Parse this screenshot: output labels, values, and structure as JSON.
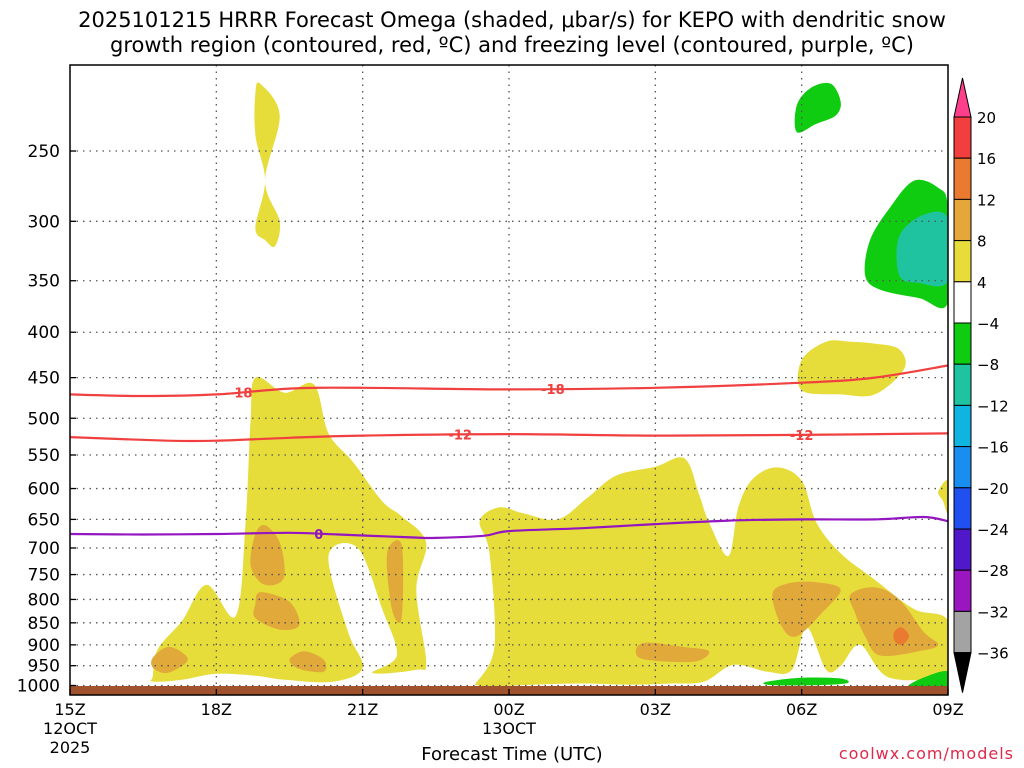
{
  "title_line1": "2025101215 HRRR Forecast Omega (shaded, μbar/s) for KEPO with dendritic snow",
  "title_line2": "growth region (contoured, red, ºC) and freezing level (contoured, purple, ºC)",
  "credit": "coolwx.com/models",
  "chart_data": {
    "type": "heatmap",
    "xlabel": "Forecast Time (UTC)",
    "x_ticks": [
      {
        "hour": 0,
        "label": "15Z",
        "sub1": "12OCT",
        "sub2": "2025"
      },
      {
        "hour": 3,
        "label": "18Z"
      },
      {
        "hour": 6,
        "label": "21Z"
      },
      {
        "hour": 9,
        "label": "00Z",
        "sub1": "13OCT"
      },
      {
        "hour": 12,
        "label": "03Z"
      },
      {
        "hour": 15,
        "label": "06Z"
      },
      {
        "hour": 18,
        "label": "09Z"
      }
    ],
    "xlim": [
      0,
      18
    ],
    "y_scale": "log-pressure",
    "ylim": [
      1025,
      200
    ],
    "y_ticks": [
      250,
      300,
      350,
      400,
      450,
      500,
      550,
      600,
      650,
      700,
      750,
      800,
      850,
      900,
      950,
      1000
    ],
    "grid": true,
    "colorbar": {
      "ticks": [
        "20",
        "16",
        "12",
        "8",
        "4",
        "−4",
        "−8",
        "−12",
        "−16",
        "−20",
        "−24",
        "−28",
        "−32",
        "−36"
      ],
      "colors": [
        "#ff3f8c",
        "#f23e3e",
        "#ea7a2f",
        "#e5a63a",
        "#e8dc3a",
        "#ffffff",
        "#10cc10",
        "#20c3a0",
        "#10b4e0",
        "#1a8ef0",
        "#2050f0",
        "#5018c8",
        "#9a16c0",
        "#a3a3a3",
        "#000000"
      ]
    },
    "omega_regions": [
      {
        "category": "4 to 8",
        "color": "#e6dc3a",
        "points": [
          [
            1.7,
            975
          ],
          [
            1.8,
            910
          ],
          [
            2.3,
            845
          ],
          [
            2.8,
            770
          ],
          [
            3.4,
            835
          ],
          [
            3.6,
            655
          ],
          [
            3.7,
            505
          ],
          [
            3.8,
            450
          ],
          [
            4.4,
            468
          ],
          [
            5.0,
            458
          ],
          [
            5.3,
            520
          ],
          [
            5.8,
            560
          ],
          [
            6.4,
            620
          ],
          [
            6.8,
            645
          ],
          [
            7.3,
            690
          ],
          [
            7.1,
            780
          ],
          [
            7.3,
            940
          ],
          [
            7.1,
            960
          ],
          [
            6.2,
            968
          ],
          [
            6.7,
            925
          ],
          [
            6.4,
            820
          ],
          [
            5.9,
            700
          ],
          [
            5.3,
            715
          ],
          [
            5.7,
            870
          ],
          [
            6.0,
            955
          ],
          [
            5.4,
            990
          ],
          [
            4.4,
            985
          ],
          [
            3.8,
            975
          ],
          [
            3.0,
            970
          ],
          [
            2.3,
            985
          ],
          [
            1.7,
            990
          ]
        ]
      },
      {
        "category": "4 to 8",
        "color": "#e6dc3a",
        "points": [
          [
            8.3,
            998
          ],
          [
            8.7,
            905
          ],
          [
            8.6,
            710
          ],
          [
            8.4,
            653
          ],
          [
            8.8,
            630
          ],
          [
            9.3,
            640
          ],
          [
            10.0,
            650
          ],
          [
            10.6,
            615
          ],
          [
            11.2,
            580
          ],
          [
            12.0,
            567
          ],
          [
            12.6,
            555
          ],
          [
            12.9,
            610
          ],
          [
            13.1,
            655
          ],
          [
            13.5,
            715
          ],
          [
            13.7,
            630
          ],
          [
            14.0,
            585
          ],
          [
            14.5,
            568
          ],
          [
            15.0,
            588
          ],
          [
            15.3,
            655
          ],
          [
            15.8,
            710
          ],
          [
            16.5,
            760
          ],
          [
            17.3,
            820
          ],
          [
            18.0,
            845
          ],
          [
            18.0,
            965
          ],
          [
            16.8,
            980
          ],
          [
            16.2,
            900
          ],
          [
            15.8,
            950
          ],
          [
            15.5,
            960
          ],
          [
            15.1,
            860
          ],
          [
            14.8,
            960
          ],
          [
            14.3,
            965
          ],
          [
            13.6,
            948
          ],
          [
            13.0,
            990
          ],
          [
            12.3,
            995
          ],
          [
            11.5,
            998
          ],
          [
            10.5,
            995
          ],
          [
            9.5,
            998
          ],
          [
            8.6,
            1003
          ],
          [
            8.3,
            998
          ]
        ]
      },
      {
        "category": "4 to 8",
        "color": "#e6dc3a",
        "points": [
          [
            3.8,
            215
          ],
          [
            3.9,
            210
          ],
          [
            4.3,
            228
          ],
          [
            4.0,
            270
          ],
          [
            4.3,
            300
          ],
          [
            4.2,
            320
          ],
          [
            4.0,
            315
          ],
          [
            3.8,
            305
          ],
          [
            4.0,
            270
          ],
          [
            3.8,
            240
          ]
        ]
      },
      {
        "category": "4 to 8",
        "color": "#e6dc3a",
        "points": [
          [
            15.0,
            430
          ],
          [
            15.5,
            410
          ],
          [
            16.0,
            410
          ],
          [
            16.5,
            412
          ],
          [
            17.0,
            418
          ],
          [
            17.1,
            440
          ],
          [
            16.5,
            470
          ],
          [
            15.8,
            470
          ],
          [
            15.0,
            465
          ]
        ]
      },
      {
        "category": "4 to 8",
        "color": "#e6dc3a",
        "points": [
          [
            17.8,
            605
          ],
          [
            18.0,
            588
          ],
          [
            18.0,
            640
          ],
          [
            17.9,
            620
          ]
        ]
      },
      {
        "category": "8 to 12",
        "color": "#e0a93a",
        "points": [
          [
            3.7,
            730
          ],
          [
            3.8,
            675
          ],
          [
            4.0,
            660
          ],
          [
            4.3,
            690
          ],
          [
            4.4,
            750
          ],
          [
            4.2,
            770
          ],
          [
            3.9,
            765
          ]
        ]
      },
      {
        "category": "8 to 12",
        "color": "#e0a93a",
        "points": [
          [
            3.8,
            810
          ],
          [
            3.9,
            785
          ],
          [
            4.5,
            805
          ],
          [
            4.7,
            855
          ],
          [
            4.3,
            865
          ],
          [
            3.8,
            840
          ]
        ]
      },
      {
        "category": "8 to 12",
        "color": "#e0a93a",
        "points": [
          [
            1.7,
            930
          ],
          [
            2.0,
            905
          ],
          [
            2.3,
            918
          ],
          [
            2.4,
            940
          ],
          [
            2.0,
            968
          ],
          [
            1.7,
            955
          ]
        ]
      },
      {
        "category": "8 to 12",
        "color": "#e0a93a",
        "points": [
          [
            4.5,
            935
          ],
          [
            4.8,
            915
          ],
          [
            5.2,
            935
          ],
          [
            5.2,
            965
          ],
          [
            4.7,
            958
          ]
        ]
      },
      {
        "category": "8 to 12",
        "color": "#e0a93a",
        "points": [
          [
            6.5,
            710
          ],
          [
            6.8,
            695
          ],
          [
            6.8,
            840
          ],
          [
            6.6,
            820
          ]
        ]
      },
      {
        "category": "8 to 12",
        "color": "#e0a93a",
        "points": [
          [
            11.6,
            915
          ],
          [
            11.8,
            895
          ],
          [
            12.6,
            905
          ],
          [
            13.1,
            915
          ],
          [
            12.8,
            940
          ],
          [
            11.8,
            935
          ]
        ]
      },
      {
        "category": "8 to 12",
        "color": "#e0a93a",
        "points": [
          [
            14.4,
            790
          ],
          [
            14.7,
            768
          ],
          [
            15.3,
            765
          ],
          [
            15.8,
            780
          ],
          [
            15.4,
            830
          ],
          [
            14.9,
            880
          ],
          [
            14.6,
            860
          ]
        ]
      },
      {
        "category": "8 to 12",
        "color": "#e0a93a",
        "points": [
          [
            16.0,
            790
          ],
          [
            16.5,
            775
          ],
          [
            17.0,
            800
          ],
          [
            17.5,
            870
          ],
          [
            17.8,
            900
          ],
          [
            17.4,
            915
          ],
          [
            16.6,
            925
          ],
          [
            16.3,
            880
          ],
          [
            16.1,
            830
          ]
        ]
      },
      {
        "category": "12 to 16",
        "color": "#ea7a2f",
        "points": [
          [
            16.9,
            870
          ],
          [
            17.05,
            860
          ],
          [
            17.2,
            880
          ],
          [
            17.05,
            900
          ],
          [
            16.9,
            890
          ]
        ]
      },
      {
        "category": "-4 to -8",
        "color": "#10cc10",
        "points": [
          [
            14.9,
            222
          ],
          [
            15.2,
            212
          ],
          [
            15.6,
            210
          ],
          [
            15.8,
            220
          ],
          [
            15.7,
            228
          ],
          [
            15.3,
            233
          ],
          [
            14.9,
            238
          ]
        ]
      },
      {
        "category": "-4 to -8",
        "color": "#10cc10",
        "points": [
          [
            16.4,
            315
          ],
          [
            16.8,
            290
          ],
          [
            17.3,
            270
          ],
          [
            17.8,
            275
          ],
          [
            18.0,
            290
          ],
          [
            18.0,
            370
          ],
          [
            17.4,
            366
          ],
          [
            16.6,
            358
          ],
          [
            16.3,
            345
          ]
        ]
      },
      {
        "category": "-8 to -12",
        "color": "#20c3a0",
        "points": [
          [
            17.0,
            345
          ],
          [
            17.0,
            312
          ],
          [
            17.5,
            295
          ],
          [
            18.0,
            298
          ],
          [
            18.0,
            350
          ],
          [
            17.4,
            352
          ]
        ]
      },
      {
        "category": "-4 to -8",
        "color": "#10cc10",
        "points": [
          [
            14.3,
            990
          ],
          [
            15.0,
            980
          ],
          [
            15.8,
            982
          ],
          [
            15.9,
            995
          ],
          [
            15.0,
            1000
          ],
          [
            14.3,
            998
          ]
        ]
      },
      {
        "category": "-4 to -8",
        "color": "#10cc10",
        "points": [
          [
            17.2,
            1000
          ],
          [
            17.6,
            975
          ],
          [
            18.0,
            965
          ],
          [
            18.0,
            1010
          ],
          [
            17.5,
            1012
          ]
        ]
      }
    ],
    "contours": [
      {
        "series": "dendritic snow growth",
        "level": "-18",
        "color": "#f04040",
        "label_x": [
          3.5,
          9.9
        ],
        "points": [
          [
            0,
            470
          ],
          [
            1.5,
            472
          ],
          [
            3,
            470
          ],
          [
            4.5,
            463
          ],
          [
            6,
            462
          ],
          [
            9,
            464
          ],
          [
            12,
            462
          ],
          [
            15,
            456
          ],
          [
            16.5,
            450
          ],
          [
            18,
            436
          ]
        ]
      },
      {
        "series": "dendritic snow growth",
        "level": "-12",
        "color": "#f04040",
        "label_x": [
          8.0,
          15.0
        ],
        "points": [
          [
            0,
            525
          ],
          [
            2,
            530
          ],
          [
            3,
            530
          ],
          [
            4.5,
            526
          ],
          [
            6,
            523
          ],
          [
            9,
            521
          ],
          [
            12,
            523
          ],
          [
            15,
            522
          ],
          [
            18,
            520
          ]
        ]
      },
      {
        "series": "freezing level",
        "level": "0",
        "color": "#9416c0",
        "label_x": [
          5.1
        ],
        "points": [
          [
            0,
            675
          ],
          [
            1.5,
            676
          ],
          [
            3,
            675
          ],
          [
            4.5,
            673
          ],
          [
            5.5,
            676
          ],
          [
            7,
            681
          ],
          [
            7.5,
            682
          ],
          [
            8.5,
            678
          ],
          [
            9,
            670
          ],
          [
            10.5,
            665
          ],
          [
            12,
            658
          ],
          [
            13.5,
            652
          ],
          [
            15,
            650
          ],
          [
            16.5,
            650
          ],
          [
            17.5,
            646
          ],
          [
            18,
            653
          ]
        ]
      }
    ]
  }
}
